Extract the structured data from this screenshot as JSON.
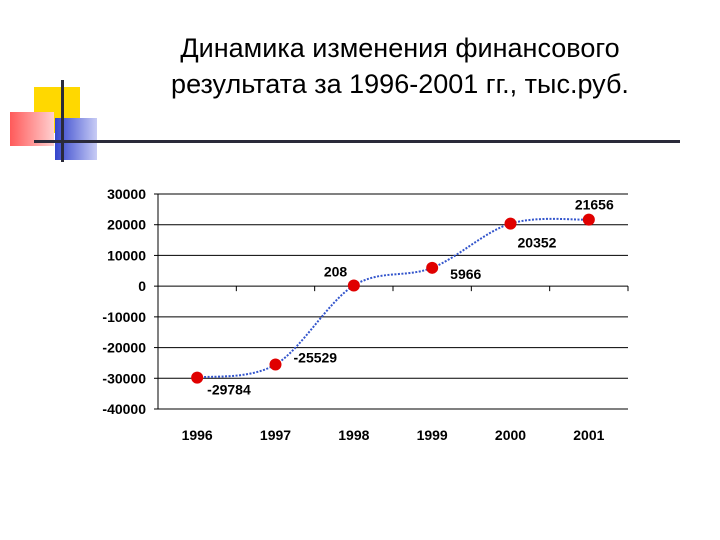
{
  "slide": {
    "title_line1": "Динамика изменения финансового",
    "title_line2": "результата за 1996-2001 гг., тыс.руб."
  },
  "chart_data": {
    "type": "line",
    "title": "Динамика изменения финансового результата за 1996-2001 гг., тыс.руб.",
    "categories": [
      "1996",
      "1997",
      "1998",
      "1999",
      "2000",
      "2001"
    ],
    "values": [
      -29784,
      -25529,
      208,
      5966,
      20352,
      21656
    ],
    "data_labels": [
      "-29784",
      "-25529",
      "208",
      "5966",
      "20352",
      "21656"
    ],
    "y_ticks": [
      "30000",
      "20000",
      "10000",
      "0",
      "-10000",
      "-20000",
      "-30000",
      "-40000"
    ],
    "ylim": [
      -40000,
      30000
    ],
    "xlabel": "",
    "ylabel": "",
    "grid": "horizontal",
    "legend": "none",
    "line_color": "#3355cc",
    "marker_color": "#e00000"
  },
  "colors": {
    "deco_yellow": "#ffd800",
    "deco_red": "#ff6a6a",
    "deco_blue": "#5566dd",
    "deco_line": "#2a2a3a"
  }
}
